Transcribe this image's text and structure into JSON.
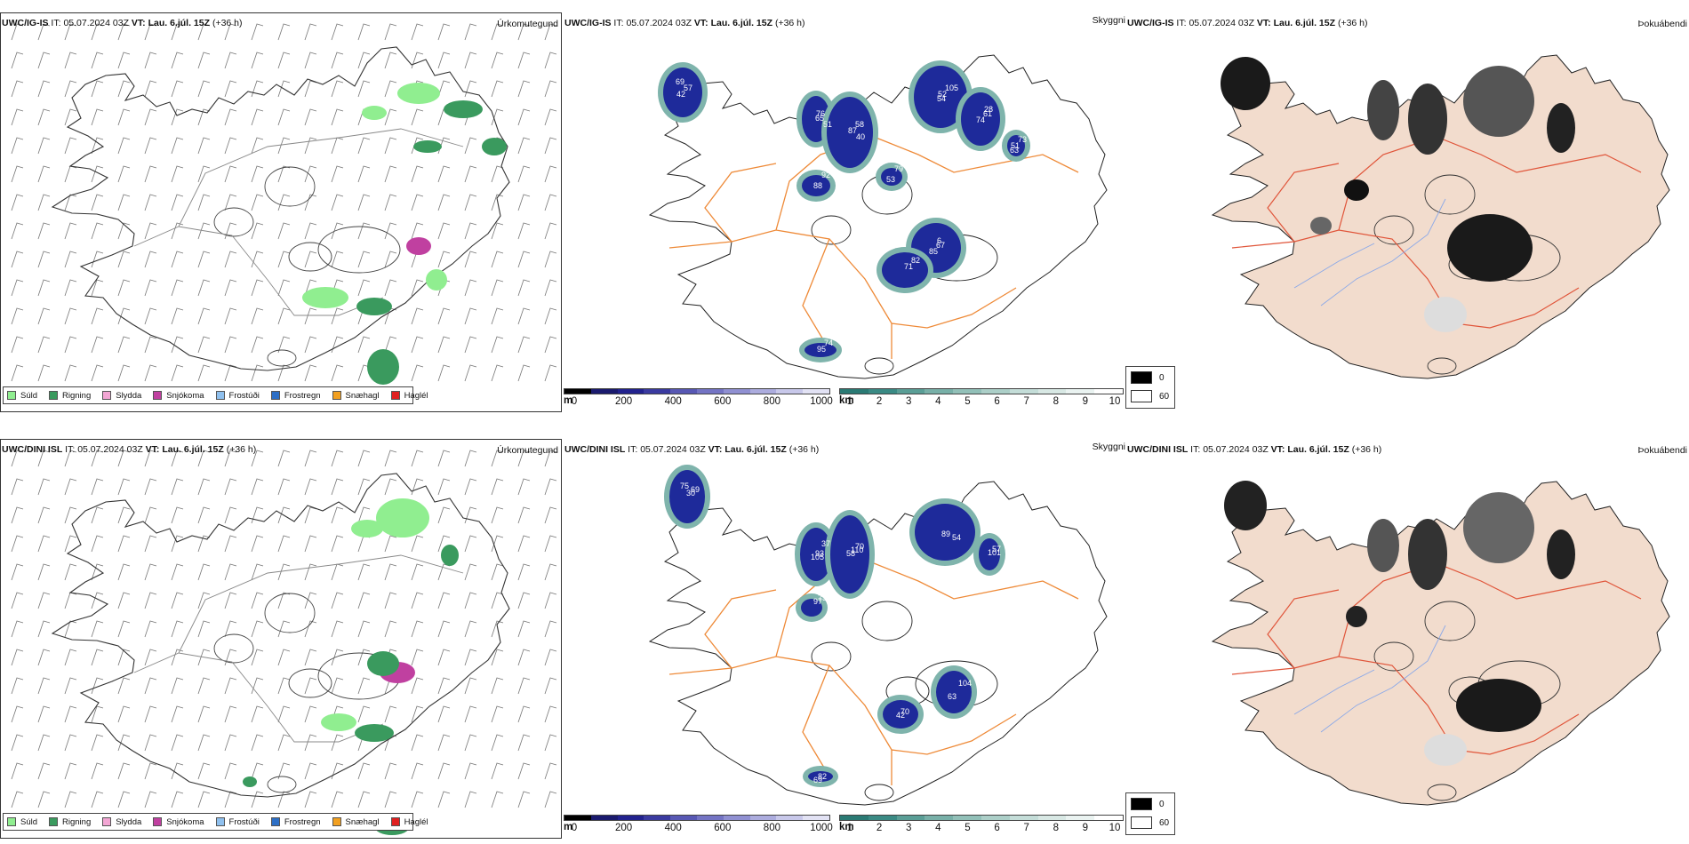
{
  "rows": [
    {
      "model": "UWC/IG-IS",
      "it_label": "IT:",
      "it_value": "05.07.2024 03Z",
      "vt_label": "VT:",
      "vt_value": "Lau. 6.júl. 15Z",
      "lead": "(+36 h)",
      "cloud_labels": [
        "69",
        "65",
        "58",
        "54",
        "61",
        "63",
        "67",
        "82",
        "88",
        "74",
        "53",
        "57",
        "51",
        "87",
        "105",
        "74",
        "73",
        "85",
        "71",
        "92",
        "95",
        "79",
        "42",
        "76",
        "40",
        "52",
        "28",
        "51",
        "6"
      ]
    },
    {
      "model": "UWC/DINI ISL",
      "it_label": "IT:",
      "it_value": "05.07.2024 03Z",
      "vt_label": "VT:",
      "vt_value": "Lau. 6.júl. 15Z",
      "lead": "(+36 h)",
      "cloud_labels": [
        "75",
        "93",
        "70",
        "89",
        "57",
        "63",
        "70",
        "73",
        "82",
        "69",
        "105",
        "110",
        "54",
        "101",
        "104",
        "42",
        "97",
        "69",
        "30",
        "37",
        "58"
      ]
    }
  ],
  "panels": {
    "precip": {
      "title": "Úrkomutegund"
    },
    "clouds": {
      "title": "Skyggni"
    },
    "fog": {
      "title": "Þokuábendi"
    }
  },
  "precip_legend": [
    {
      "label": "Súld",
      "color": "#90ee90"
    },
    {
      "label": "Rigning",
      "color": "#3a9a5e"
    },
    {
      "label": "Slydda",
      "color": "#f3a6d4"
    },
    {
      "label": "Snjókoma",
      "color": "#c040a0"
    },
    {
      "label": "Frostúði",
      "color": "#8fc0ee"
    },
    {
      "label": "Frostregn",
      "color": "#2d6fc6"
    },
    {
      "label": "Snæhagl",
      "color": "#f2a020"
    },
    {
      "label": "Haglél",
      "color": "#e02020"
    }
  ],
  "cloud_base_scale": {
    "unit": "m",
    "ticks": [
      "0",
      "200",
      "400",
      "600",
      "800",
      "1000"
    ],
    "colors": [
      "#000000",
      "#1a1a6e",
      "#22228e",
      "#3a3aa0",
      "#5858b4",
      "#7474c4",
      "#9090d2",
      "#acacde",
      "#c8c8ea",
      "#e2e2f4"
    ]
  },
  "visibility_scale": {
    "unit": "km",
    "ticks": [
      "1",
      "2",
      "3",
      "4",
      "5",
      "6",
      "7",
      "8",
      "9",
      "10"
    ],
    "colors": [
      "#2a7a74",
      "#3a8a84",
      "#5a9e96",
      "#78b0a8",
      "#92c0b8",
      "#accfc8",
      "#c4ddd8",
      "#d8e8e4",
      "#eaf3f1",
      "#ffffff"
    ]
  },
  "fog_legend": [
    {
      "label": "0",
      "color": "#000000"
    },
    {
      "label": "60",
      "color": "#ffffff"
    }
  ]
}
